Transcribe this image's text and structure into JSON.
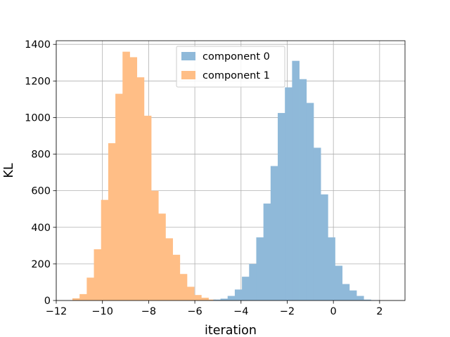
{
  "chart_data": {
    "type": "bar",
    "subtype": "histogram",
    "title": "",
    "xlabel": "iteration",
    "ylabel": "KL",
    "xlim": [
      -12,
      3.1
    ],
    "ylim": [
      0,
      1420
    ],
    "xticks": [
      -12,
      -10,
      -8,
      -6,
      -4,
      -2,
      0,
      2
    ],
    "xtick_labels": [
      "−12",
      "−10",
      "−8",
      "−6",
      "−4",
      "−2",
      "0",
      "2"
    ],
    "yticks": [
      0,
      200,
      400,
      600,
      800,
      1000,
      1200,
      1400
    ],
    "ytick_labels": [
      "0",
      "200",
      "400",
      "600",
      "800",
      "1000",
      "1200",
      "1400"
    ],
    "grid": true,
    "legend_position": "top-center",
    "series": [
      {
        "name": "component 1",
        "color": "#ffbe86",
        "bin_start": -11.3,
        "bin_width": 0.31,
        "values": [
          12,
          35,
          125,
          280,
          550,
          860,
          1130,
          1360,
          1330,
          1220,
          1010,
          600,
          475,
          340,
          250,
          145,
          75,
          30,
          15,
          5,
          3
        ]
      },
      {
        "name": "component 0",
        "color": "#8fb9d9",
        "bin_start": -5.2,
        "bin_width": 0.31,
        "values": [
          5,
          10,
          25,
          60,
          130,
          200,
          345,
          530,
          735,
          1025,
          1165,
          1310,
          1210,
          1080,
          835,
          580,
          345,
          190,
          90,
          55,
          25,
          5,
          2
        ]
      }
    ]
  }
}
